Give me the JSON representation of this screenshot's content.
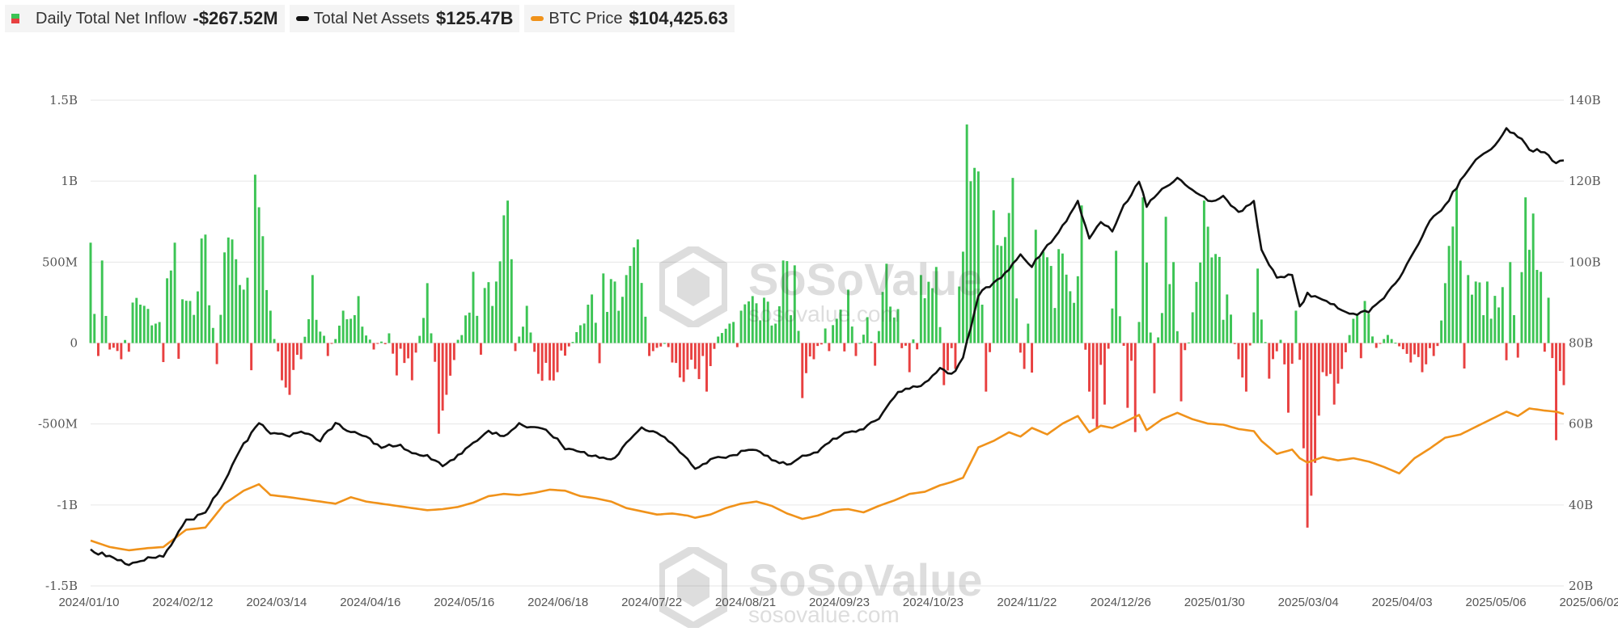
{
  "legend": {
    "inflow": {
      "label": "Daily Total Net Inflow",
      "value": "-$267.52M",
      "color_pos": "#3cc454",
      "color_neg": "#e84040"
    },
    "assets": {
      "label": "Total Net Assets",
      "value": "$125.47B",
      "color": "#111111"
    },
    "btc": {
      "label": "BTC Price",
      "value": "$104,425.63",
      "color": "#f0921a"
    }
  },
  "watermark": {
    "name": "SoSoValue",
    "url": "sosovalue.com"
  },
  "chart_data": {
    "type": "bar+line",
    "x_tick_labels": [
      "2024/01/10",
      "2024/02/12",
      "2024/03/14",
      "2024/04/16",
      "2024/05/16",
      "2024/06/18",
      "2024/07/22",
      "2024/08/21",
      "2024/09/23",
      "2024/10/23",
      "2024/11/22",
      "2024/12/26",
      "2025/01/30",
      "2025/03/04",
      "2025/04/03",
      "2025/05/06",
      "2025/06/02"
    ],
    "y_left_ticks": [
      "1.5B",
      "1B",
      "500M",
      "0",
      "-500M",
      "-1B",
      "-1.5B"
    ],
    "y_left_range_millions": [
      -1500,
      1500
    ],
    "y_right_ticks": [
      "140B",
      "120B",
      "100B",
      "80B",
      "60B",
      "40B",
      "20B"
    ],
    "y_right_range_billions": [
      20,
      140
    ],
    "grid": "horizontal",
    "inflow_millions_keypoints": [
      [
        0,
        620
      ],
      [
        1,
        180
      ],
      [
        2,
        -80
      ],
      [
        3,
        510
      ],
      [
        5,
        -40
      ],
      [
        8,
        -100
      ],
      [
        11,
        250
      ],
      [
        14,
        230
      ],
      [
        17,
        120
      ],
      [
        20,
        400
      ],
      [
        22,
        620
      ],
      [
        26,
        260
      ],
      [
        30,
        670
      ],
      [
        33,
        -130
      ],
      [
        35,
        560
      ],
      [
        37,
        640
      ],
      [
        40,
        330
      ],
      [
        43,
        1040
      ],
      [
        45,
        660
      ],
      [
        47,
        200
      ],
      [
        50,
        -230
      ],
      [
        52,
        -320
      ],
      [
        55,
        -100
      ],
      [
        58,
        420
      ],
      [
        62,
        -80
      ],
      [
        66,
        200
      ],
      [
        70,
        290
      ],
      [
        74,
        -40
      ],
      [
        78,
        60
      ],
      [
        80,
        -200
      ],
      [
        84,
        -230
      ],
      [
        88,
        370
      ],
      [
        91,
        -560
      ],
      [
        96,
        20
      ],
      [
        100,
        440
      ],
      [
        103,
        340
      ],
      [
        106,
        380
      ],
      [
        109,
        880
      ],
      [
        112,
        40
      ],
      [
        114,
        230
      ],
      [
        117,
        -190
      ],
      [
        120,
        -230
      ],
      [
        122,
        -180
      ],
      [
        128,
        110
      ],
      [
        131,
        300
      ],
      [
        134,
        430
      ],
      [
        137,
        380
      ],
      [
        140,
        420
      ],
      [
        143,
        640
      ],
      [
        146,
        -80
      ],
      [
        150,
        0
      ],
      [
        152,
        -120
      ],
      [
        155,
        -240
      ],
      [
        158,
        -160
      ],
      [
        161,
        -300
      ],
      [
        164,
        40
      ],
      [
        167,
        120
      ],
      [
        170,
        200
      ],
      [
        173,
        290
      ],
      [
        176,
        280
      ],
      [
        179,
        120
      ],
      [
        181,
        510
      ],
      [
        184,
        480
      ],
      [
        186,
        -340
      ],
      [
        189,
        -100
      ],
      [
        192,
        90
      ],
      [
        195,
        150
      ],
      [
        198,
        330
      ],
      [
        200,
        -80
      ],
      [
        203,
        160
      ],
      [
        205,
        -140
      ],
      [
        208,
        490
      ],
      [
        211,
        210
      ],
      [
        214,
        -180
      ],
      [
        217,
        420
      ],
      [
        221,
        470
      ],
      [
        223,
        -260
      ],
      [
        226,
        -160
      ],
      [
        229,
        1350
      ],
      [
        232,
        1060
      ],
      [
        234,
        -300
      ],
      [
        236,
        820
      ],
      [
        238,
        600
      ],
      [
        241,
        1020
      ],
      [
        244,
        -160
      ],
      [
        247,
        700
      ],
      [
        250,
        530
      ],
      [
        253,
        580
      ],
      [
        256,
        320
      ],
      [
        259,
        850
      ],
      [
        261,
        -300
      ],
      [
        263,
        -530
      ],
      [
        265,
        -380
      ],
      [
        268,
        570
      ],
      [
        271,
        -400
      ],
      [
        273,
        -550
      ],
      [
        275,
        900
      ],
      [
        278,
        -310
      ],
      [
        281,
        780
      ],
      [
        283,
        500
      ],
      [
        285,
        -360
      ],
      [
        288,
        190
      ],
      [
        291,
        880
      ],
      [
        294,
        550
      ],
      [
        297,
        300
      ],
      [
        300,
        -100
      ],
      [
        302,
        -300
      ],
      [
        305,
        460
      ],
      [
        308,
        -220
      ],
      [
        311,
        20
      ],
      [
        313,
        -430
      ],
      [
        315,
        200
      ],
      [
        317,
        -650
      ],
      [
        318,
        -1140
      ],
      [
        320,
        -740
      ],
      [
        322,
        -180
      ],
      [
        325,
        -380
      ],
      [
        327,
        -160
      ],
      [
        330,
        150
      ],
      [
        333,
        260
      ],
      [
        336,
        -30
      ],
      [
        339,
        50
      ],
      [
        342,
        -20
      ],
      [
        345,
        -120
      ],
      [
        348,
        -180
      ],
      [
        351,
        -80
      ],
      [
        354,
        370
      ],
      [
        357,
        960
      ],
      [
        360,
        420
      ],
      [
        362,
        380
      ],
      [
        365,
        380
      ],
      [
        368,
        220
      ],
      [
        371,
        500
      ],
      [
        373,
        -90
      ],
      [
        375,
        900
      ],
      [
        377,
        800
      ],
      [
        379,
        440
      ],
      [
        381,
        280
      ],
      [
        383,
        -600
      ],
      [
        385,
        -260
      ]
    ],
    "total_net_assets_billions_keypoints": [
      [
        0,
        29
      ],
      [
        5,
        27
      ],
      [
        10,
        25.5
      ],
      [
        15,
        27
      ],
      [
        19,
        27.5
      ],
      [
        25,
        36
      ],
      [
        30,
        38
      ],
      [
        35,
        46
      ],
      [
        40,
        55
      ],
      [
        44,
        60
      ],
      [
        47,
        58
      ],
      [
        52,
        57
      ],
      [
        56,
        58
      ],
      [
        60,
        56
      ],
      [
        64,
        60
      ],
      [
        68,
        58
      ],
      [
        72,
        57
      ],
      [
        76,
        54
      ],
      [
        80,
        55
      ],
      [
        84,
        53
      ],
      [
        88,
        52
      ],
      [
        92,
        50
      ],
      [
        96,
        52
      ],
      [
        100,
        55
      ],
      [
        104,
        58
      ],
      [
        108,
        57
      ],
      [
        112,
        60
      ],
      [
        116,
        59
      ],
      [
        120,
        58
      ],
      [
        124,
        54
      ],
      [
        128,
        53
      ],
      [
        132,
        52
      ],
      [
        136,
        51
      ],
      [
        140,
        55
      ],
      [
        144,
        59
      ],
      [
        148,
        58
      ],
      [
        152,
        55
      ],
      [
        156,
        51
      ],
      [
        158,
        49
      ],
      [
        162,
        51
      ],
      [
        166,
        52
      ],
      [
        170,
        53
      ],
      [
        174,
        54
      ],
      [
        178,
        51
      ],
      [
        182,
        50
      ],
      [
        186,
        52
      ],
      [
        190,
        53
      ],
      [
        194,
        56
      ],
      [
        198,
        58
      ],
      [
        202,
        59
      ],
      [
        206,
        61
      ],
      [
        210,
        67
      ],
      [
        214,
        69
      ],
      [
        218,
        70
      ],
      [
        222,
        74
      ],
      [
        225,
        72
      ],
      [
        228,
        76
      ],
      [
        232,
        92
      ],
      [
        236,
        95
      ],
      [
        240,
        98
      ],
      [
        243,
        102
      ],
      [
        246,
        99
      ],
      [
        250,
        104
      ],
      [
        254,
        109
      ],
      [
        258,
        115
      ],
      [
        261,
        106
      ],
      [
        264,
        110
      ],
      [
        267,
        108
      ],
      [
        270,
        114
      ],
      [
        274,
        120
      ],
      [
        276,
        114
      ],
      [
        280,
        118
      ],
      [
        284,
        121
      ],
      [
        288,
        118
      ],
      [
        292,
        115
      ],
      [
        296,
        116
      ],
      [
        300,
        112
      ],
      [
        304,
        115
      ],
      [
        306,
        103
      ],
      [
        310,
        96
      ],
      [
        314,
        97
      ],
      [
        316,
        89
      ],
      [
        318,
        92
      ],
      [
        322,
        91
      ],
      [
        326,
        89
      ],
      [
        330,
        87
      ],
      [
        334,
        88
      ],
      [
        338,
        91
      ],
      [
        342,
        96
      ],
      [
        346,
        103
      ],
      [
        350,
        110
      ],
      [
        354,
        114
      ],
      [
        358,
        120
      ],
      [
        362,
        125
      ],
      [
        366,
        128
      ],
      [
        370,
        133
      ],
      [
        373,
        131
      ],
      [
        376,
        128
      ],
      [
        380,
        127
      ],
      [
        383,
        124
      ],
      [
        385,
        125.47
      ]
    ],
    "btc_price_usd_keypoints": [
      [
        0,
        46000
      ],
      [
        5,
        43000
      ],
      [
        10,
        41500
      ],
      [
        15,
        42500
      ],
      [
        19,
        43000
      ],
      [
        25,
        51000
      ],
      [
        30,
        52000
      ],
      [
        35,
        63000
      ],
      [
        40,
        69000
      ],
      [
        44,
        72000
      ],
      [
        47,
        67000
      ],
      [
        52,
        66000
      ],
      [
        56,
        65000
      ],
      [
        60,
        64000
      ],
      [
        64,
        63000
      ],
      [
        68,
        66000
      ],
      [
        72,
        64000
      ],
      [
        76,
        63000
      ],
      [
        80,
        62000
      ],
      [
        84,
        61000
      ],
      [
        88,
        60000
      ],
      [
        92,
        60500
      ],
      [
        96,
        61500
      ],
      [
        100,
        63500
      ],
      [
        104,
        66500
      ],
      [
        108,
        67500
      ],
      [
        112,
        67000
      ],
      [
        116,
        68000
      ],
      [
        120,
        69500
      ],
      [
        124,
        69000
      ],
      [
        128,
        66500
      ],
      [
        132,
        65500
      ],
      [
        136,
        64000
      ],
      [
        140,
        61000
      ],
      [
        144,
        59500
      ],
      [
        148,
        58000
      ],
      [
        152,
        58500
      ],
      [
        156,
        57500
      ],
      [
        158,
        56500
      ],
      [
        162,
        58000
      ],
      [
        166,
        61000
      ],
      [
        170,
        63000
      ],
      [
        174,
        64000
      ],
      [
        178,
        62000
      ],
      [
        182,
        58500
      ],
      [
        186,
        56000
      ],
      [
        190,
        57500
      ],
      [
        194,
        60000
      ],
      [
        198,
        60500
      ],
      [
        202,
        59000
      ],
      [
        206,
        62000
      ],
      [
        210,
        64500
      ],
      [
        214,
        67500
      ],
      [
        218,
        68500
      ],
      [
        222,
        71500
      ],
      [
        225,
        73000
      ],
      [
        228,
        75000
      ],
      [
        232,
        89000
      ],
      [
        236,
        92000
      ],
      [
        240,
        96000
      ],
      [
        243,
        94000
      ],
      [
        246,
        98000
      ],
      [
        250,
        95000
      ],
      [
        254,
        100000
      ],
      [
        258,
        103500
      ],
      [
        261,
        96000
      ],
      [
        264,
        99000
      ],
      [
        267,
        98000
      ],
      [
        270,
        100500
      ],
      [
        274,
        104000
      ],
      [
        276,
        97000
      ],
      [
        280,
        102000
      ],
      [
        284,
        105000
      ],
      [
        288,
        102000
      ],
      [
        292,
        100000
      ],
      [
        296,
        99500
      ],
      [
        300,
        97500
      ],
      [
        304,
        96500
      ],
      [
        306,
        92000
      ],
      [
        310,
        86000
      ],
      [
        314,
        88000
      ],
      [
        316,
        84000
      ],
      [
        318,
        82000
      ],
      [
        322,
        84500
      ],
      [
        326,
        83000
      ],
      [
        330,
        84000
      ],
      [
        334,
        82500
      ],
      [
        338,
        80000
      ],
      [
        342,
        77000
      ],
      [
        346,
        84000
      ],
      [
        350,
        88500
      ],
      [
        354,
        93500
      ],
      [
        358,
        95000
      ],
      [
        362,
        98500
      ],
      [
        366,
        102000
      ],
      [
        370,
        105500
      ],
      [
        373,
        103500
      ],
      [
        376,
        107000
      ],
      [
        380,
        106000
      ],
      [
        383,
        105500
      ],
      [
        385,
        104425.63
      ]
    ]
  }
}
